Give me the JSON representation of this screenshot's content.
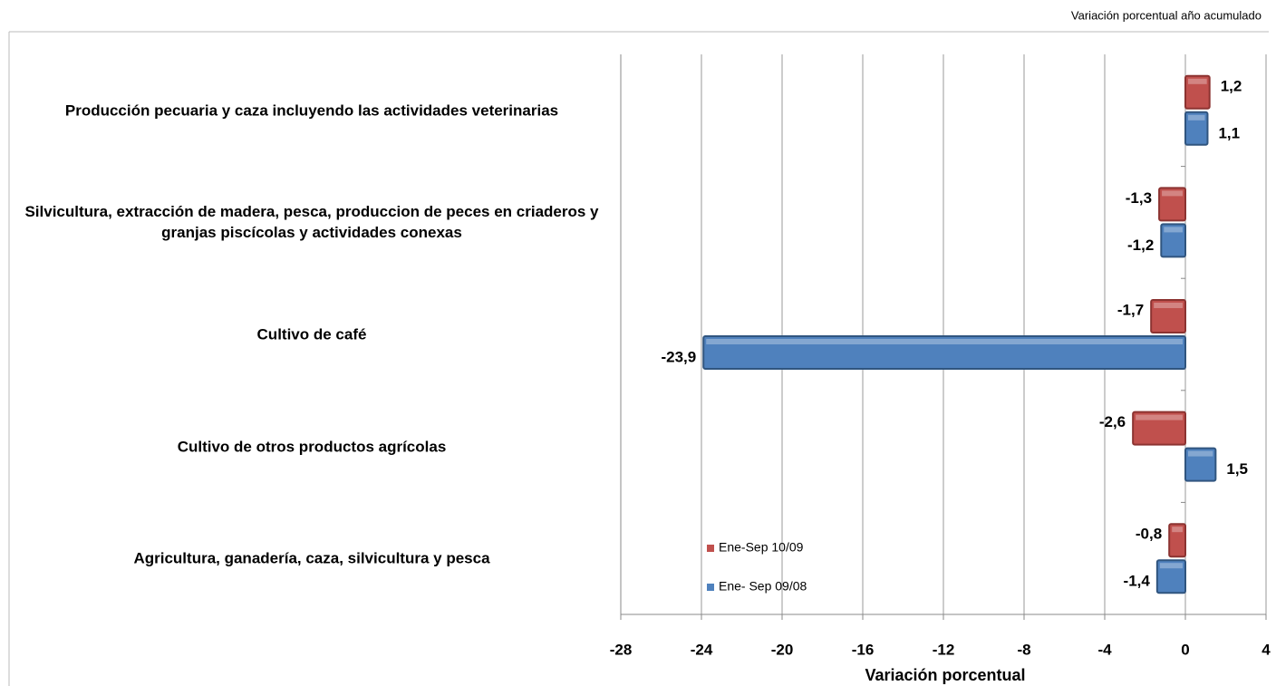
{
  "chart_data": {
    "type": "barh",
    "subtitle": "Variación porcentual año acumulado",
    "xlabel": "Variación porcentual",
    "categories": [
      "Producción pecuaria y caza incluyendo las actividades veterinarias",
      "Silvicultura, extracción de madera, pesca, produccion de peces en criaderos y granjas piscícolas y actividades conexas",
      "Cultivo de café",
      "Cultivo de otros productos agrícolas",
      "Agricultura, ganadería, caza, silvicultura y pesca"
    ],
    "series": [
      {
        "name": "Ene-Sep 10/09",
        "color": "#c0504d",
        "values": [
          1.2,
          -1.3,
          -1.7,
          -2.6,
          -0.8
        ],
        "value_labels": [
          "1,2",
          "-1,3",
          "-1,7",
          "-2,6",
          "-0,8"
        ]
      },
      {
        "name": "Ene- Sep 09/08",
        "color": "#4f81bd",
        "values": [
          1.1,
          -1.2,
          -23.9,
          1.5,
          -1.4
        ],
        "value_labels": [
          "1,1",
          "-1,2",
          "-23,9",
          "1,5",
          "-1,4"
        ]
      }
    ],
    "xlim": [
      -28,
      4
    ],
    "xticks": [
      -28,
      -24,
      -20,
      -16,
      -12,
      -8,
      -4,
      0,
      4
    ],
    "grid": true,
    "legend": "lower center"
  }
}
